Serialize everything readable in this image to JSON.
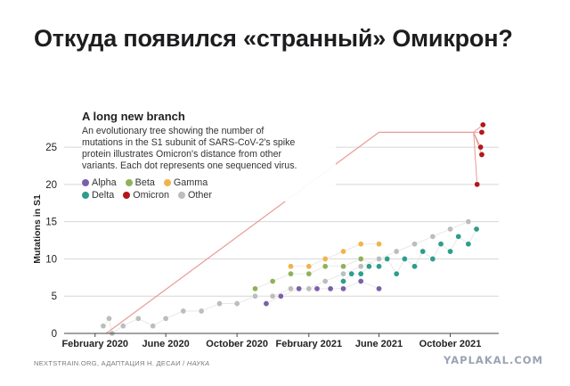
{
  "page": {
    "headline": "Откуда появился «странный» Омикрон?",
    "source_prefix": "NEXTSTRAIN.ORG, АДАПТАЦИЯ Н. ДЕСАИ / ",
    "source_italic": "НАУКА",
    "watermark": "YAPLAKAL.COM"
  },
  "chart_data": {
    "type": "scatter",
    "title": "A long new branch",
    "subtitle": "An evolutionary tree showing the number of mutations in the S1 subunit of SARS-CoV-2's spike protein illustrates Omicron's distance from other variants. Each dot represents one sequenced virus.",
    "subtitle_lines": [
      "An evolutionary tree showing the number of",
      "mutations in the S1 subunit of SARS-CoV-2's spike",
      "protein illustrates Omicron's distance from other",
      "variants. Each dot represents one sequenced virus."
    ],
    "xlabel": "",
    "ylabel": "Mutations in S1",
    "xlim": [
      "2019-12-10",
      "2021-12-20"
    ],
    "ylim": [
      0,
      28
    ],
    "x_ticks": [
      "2020-02-01",
      "2020-06-01",
      "2020-10-01",
      "2021-02-01",
      "2021-06-01",
      "2021-10-01"
    ],
    "x_tick_labels": [
      "February 2020",
      "June 2020",
      "October 2020",
      "February 2021",
      "June 2021",
      "October 2021"
    ],
    "y_ticks": [
      0,
      5,
      10,
      15,
      20,
      25
    ],
    "y_tick_labels": [
      "0",
      "5",
      "10",
      "15",
      "20",
      "25"
    ],
    "grid": "horizontal",
    "legend_position": "top-left",
    "legend": [
      {
        "name": "Alpha",
        "color": "#7b5fa8"
      },
      {
        "name": "Beta",
        "color": "#8fb25a"
      },
      {
        "name": "Gamma",
        "color": "#f2b24e"
      },
      {
        "name": "Delta",
        "color": "#2e9d8c"
      },
      {
        "name": "Omicron",
        "color": "#b3171b"
      },
      {
        "name": "Other",
        "color": "#bdbdbd"
      }
    ],
    "omicron_branch": {
      "color": "#e89b97",
      "path": [
        {
          "x": "2020-02-20",
          "y": 0
        },
        {
          "x": "2021-06-01",
          "y": 27
        },
        {
          "x": "2021-11-10",
          "y": 27
        }
      ],
      "tips": [
        {
          "x": "2021-11-26",
          "y": 28
        },
        {
          "x": "2021-11-24",
          "y": 27
        },
        {
          "x": "2021-11-22",
          "y": 25
        },
        {
          "x": "2021-11-24",
          "y": 24
        },
        {
          "x": "2021-11-16",
          "y": 20
        }
      ]
    },
    "series": [
      {
        "name": "Other",
        "color": "#bdbdbd",
        "points": [
          {
            "x": "2020-02-15",
            "y": 1
          },
          {
            "x": "2020-02-25",
            "y": 2
          },
          {
            "x": "2020-03-01",
            "y": 0
          },
          {
            "x": "2020-03-20",
            "y": 1
          },
          {
            "x": "2020-04-15",
            "y": 2
          },
          {
            "x": "2020-05-10",
            "y": 1
          },
          {
            "x": "2020-06-01",
            "y": 2
          },
          {
            "x": "2020-07-01",
            "y": 3
          },
          {
            "x": "2020-08-01",
            "y": 3
          },
          {
            "x": "2020-09-01",
            "y": 4
          },
          {
            "x": "2020-10-01",
            "y": 4
          },
          {
            "x": "2020-11-01",
            "y": 5
          },
          {
            "x": "2020-12-01",
            "y": 5
          },
          {
            "x": "2021-01-01",
            "y": 6
          },
          {
            "x": "2021-02-01",
            "y": 6
          },
          {
            "x": "2021-03-01",
            "y": 7
          },
          {
            "x": "2021-04-01",
            "y": 8
          },
          {
            "x": "2021-05-01",
            "y": 9
          },
          {
            "x": "2021-06-01",
            "y": 10
          },
          {
            "x": "2021-07-01",
            "y": 11
          },
          {
            "x": "2021-08-01",
            "y": 12
          },
          {
            "x": "2021-09-01",
            "y": 13
          },
          {
            "x": "2021-10-01",
            "y": 14
          },
          {
            "x": "2021-11-01",
            "y": 15
          }
        ]
      },
      {
        "name": "Alpha",
        "color": "#7b5fa8",
        "points": [
          {
            "x": "2020-11-20",
            "y": 4
          },
          {
            "x": "2020-12-15",
            "y": 5
          },
          {
            "x": "2021-01-15",
            "y": 6
          },
          {
            "x": "2021-02-15",
            "y": 6
          },
          {
            "x": "2021-03-10",
            "y": 6
          },
          {
            "x": "2021-04-01",
            "y": 6
          },
          {
            "x": "2021-05-01",
            "y": 7
          },
          {
            "x": "2021-06-01",
            "y": 6
          }
        ]
      },
      {
        "name": "Beta",
        "color": "#8fb25a",
        "points": [
          {
            "x": "2020-11-01",
            "y": 6
          },
          {
            "x": "2020-12-01",
            "y": 7
          },
          {
            "x": "2021-01-01",
            "y": 8
          },
          {
            "x": "2021-02-01",
            "y": 8
          },
          {
            "x": "2021-03-01",
            "y": 9
          },
          {
            "x": "2021-04-01",
            "y": 9
          },
          {
            "x": "2021-05-01",
            "y": 10
          },
          {
            "x": "2021-06-01",
            "y": 9
          }
        ]
      },
      {
        "name": "Gamma",
        "color": "#f2b24e",
        "points": [
          {
            "x": "2021-01-01",
            "y": 9
          },
          {
            "x": "2021-02-01",
            "y": 9
          },
          {
            "x": "2021-03-01",
            "y": 10
          },
          {
            "x": "2021-04-01",
            "y": 11
          },
          {
            "x": "2021-05-01",
            "y": 12
          },
          {
            "x": "2021-06-01",
            "y": 12
          }
        ]
      },
      {
        "name": "Delta",
        "color": "#2e9d8c",
        "points": [
          {
            "x": "2021-04-01",
            "y": 7
          },
          {
            "x": "2021-04-15",
            "y": 8
          },
          {
            "x": "2021-05-01",
            "y": 8
          },
          {
            "x": "2021-05-15",
            "y": 9
          },
          {
            "x": "2021-06-01",
            "y": 9
          },
          {
            "x": "2021-06-15",
            "y": 10
          },
          {
            "x": "2021-07-01",
            "y": 8
          },
          {
            "x": "2021-07-15",
            "y": 10
          },
          {
            "x": "2021-08-01",
            "y": 9
          },
          {
            "x": "2021-08-15",
            "y": 11
          },
          {
            "x": "2021-09-01",
            "y": 10
          },
          {
            "x": "2021-09-15",
            "y": 12
          },
          {
            "x": "2021-10-01",
            "y": 11
          },
          {
            "x": "2021-10-15",
            "y": 13
          },
          {
            "x": "2021-11-01",
            "y": 12
          },
          {
            "x": "2021-11-15",
            "y": 14
          }
        ]
      }
    ]
  }
}
